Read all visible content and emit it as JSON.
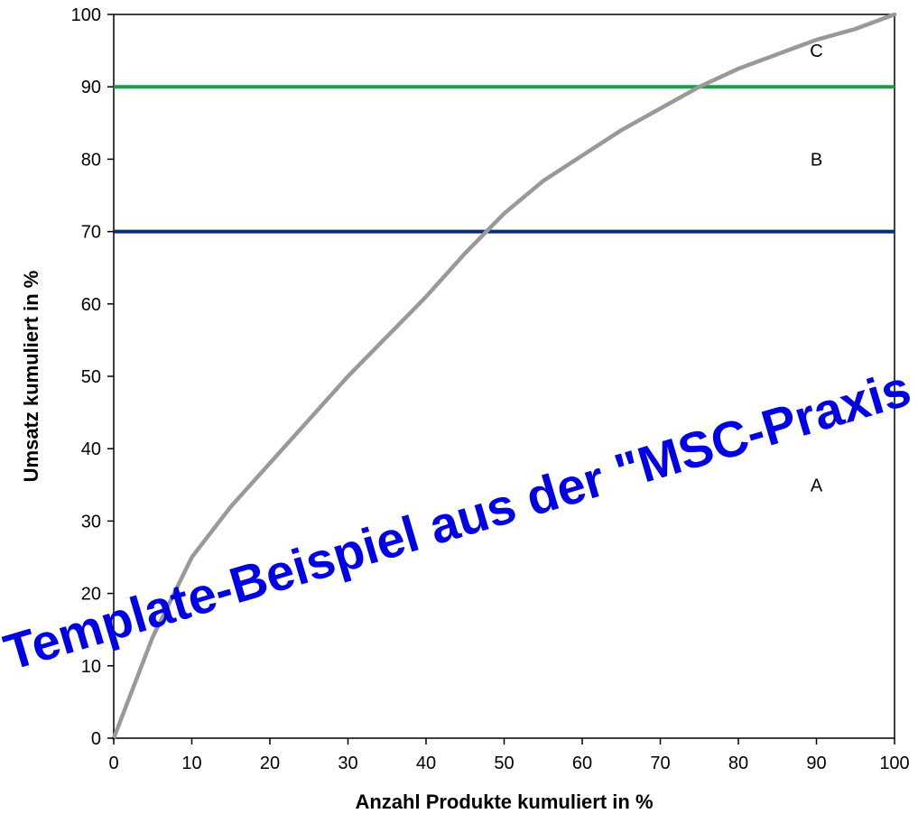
{
  "chart_data": {
    "type": "line",
    "title": "",
    "xlabel": "Anzahl Produkte kumuliert in %",
    "ylabel": "Umsatz kumuliert in %",
    "xlim": [
      0,
      100
    ],
    "ylim": [
      0,
      100
    ],
    "x_ticks": [
      "0",
      "10",
      "20",
      "30",
      "40",
      "50",
      "60",
      "70",
      "80",
      "90",
      "100"
    ],
    "y_ticks": [
      "0",
      "10",
      "20",
      "30",
      "40",
      "50",
      "60",
      "70",
      "80",
      "90",
      "100"
    ],
    "grid": false,
    "series": [
      {
        "color": "#999999",
        "x": [
          0,
          5,
          10,
          15,
          20,
          25,
          30,
          35,
          40,
          45,
          50,
          55,
          60,
          65,
          70,
          75,
          80,
          85,
          90,
          95,
          100
        ],
        "y": [
          0,
          14,
          25,
          32,
          38,
          44,
          50,
          55.5,
          61,
          67,
          72.5,
          77,
          80.5,
          84,
          87,
          90,
          92.5,
          94.5,
          96.5,
          98,
          100
        ]
      }
    ],
    "thresholds": [
      {
        "y": 90,
        "color": "#1a9c4a"
      },
      {
        "y": 70,
        "color": "#0a2a78"
      }
    ],
    "zone_labels": [
      {
        "text": "C",
        "x": 90,
        "y": 95
      },
      {
        "text": "B",
        "x": 90,
        "y": 80
      },
      {
        "text": "A",
        "x": 90,
        "y": 35
      }
    ]
  },
  "watermark": {
    "text": "Template-Beispiel aus der \"MSC-Praxis",
    "color": "#0000e6"
  }
}
